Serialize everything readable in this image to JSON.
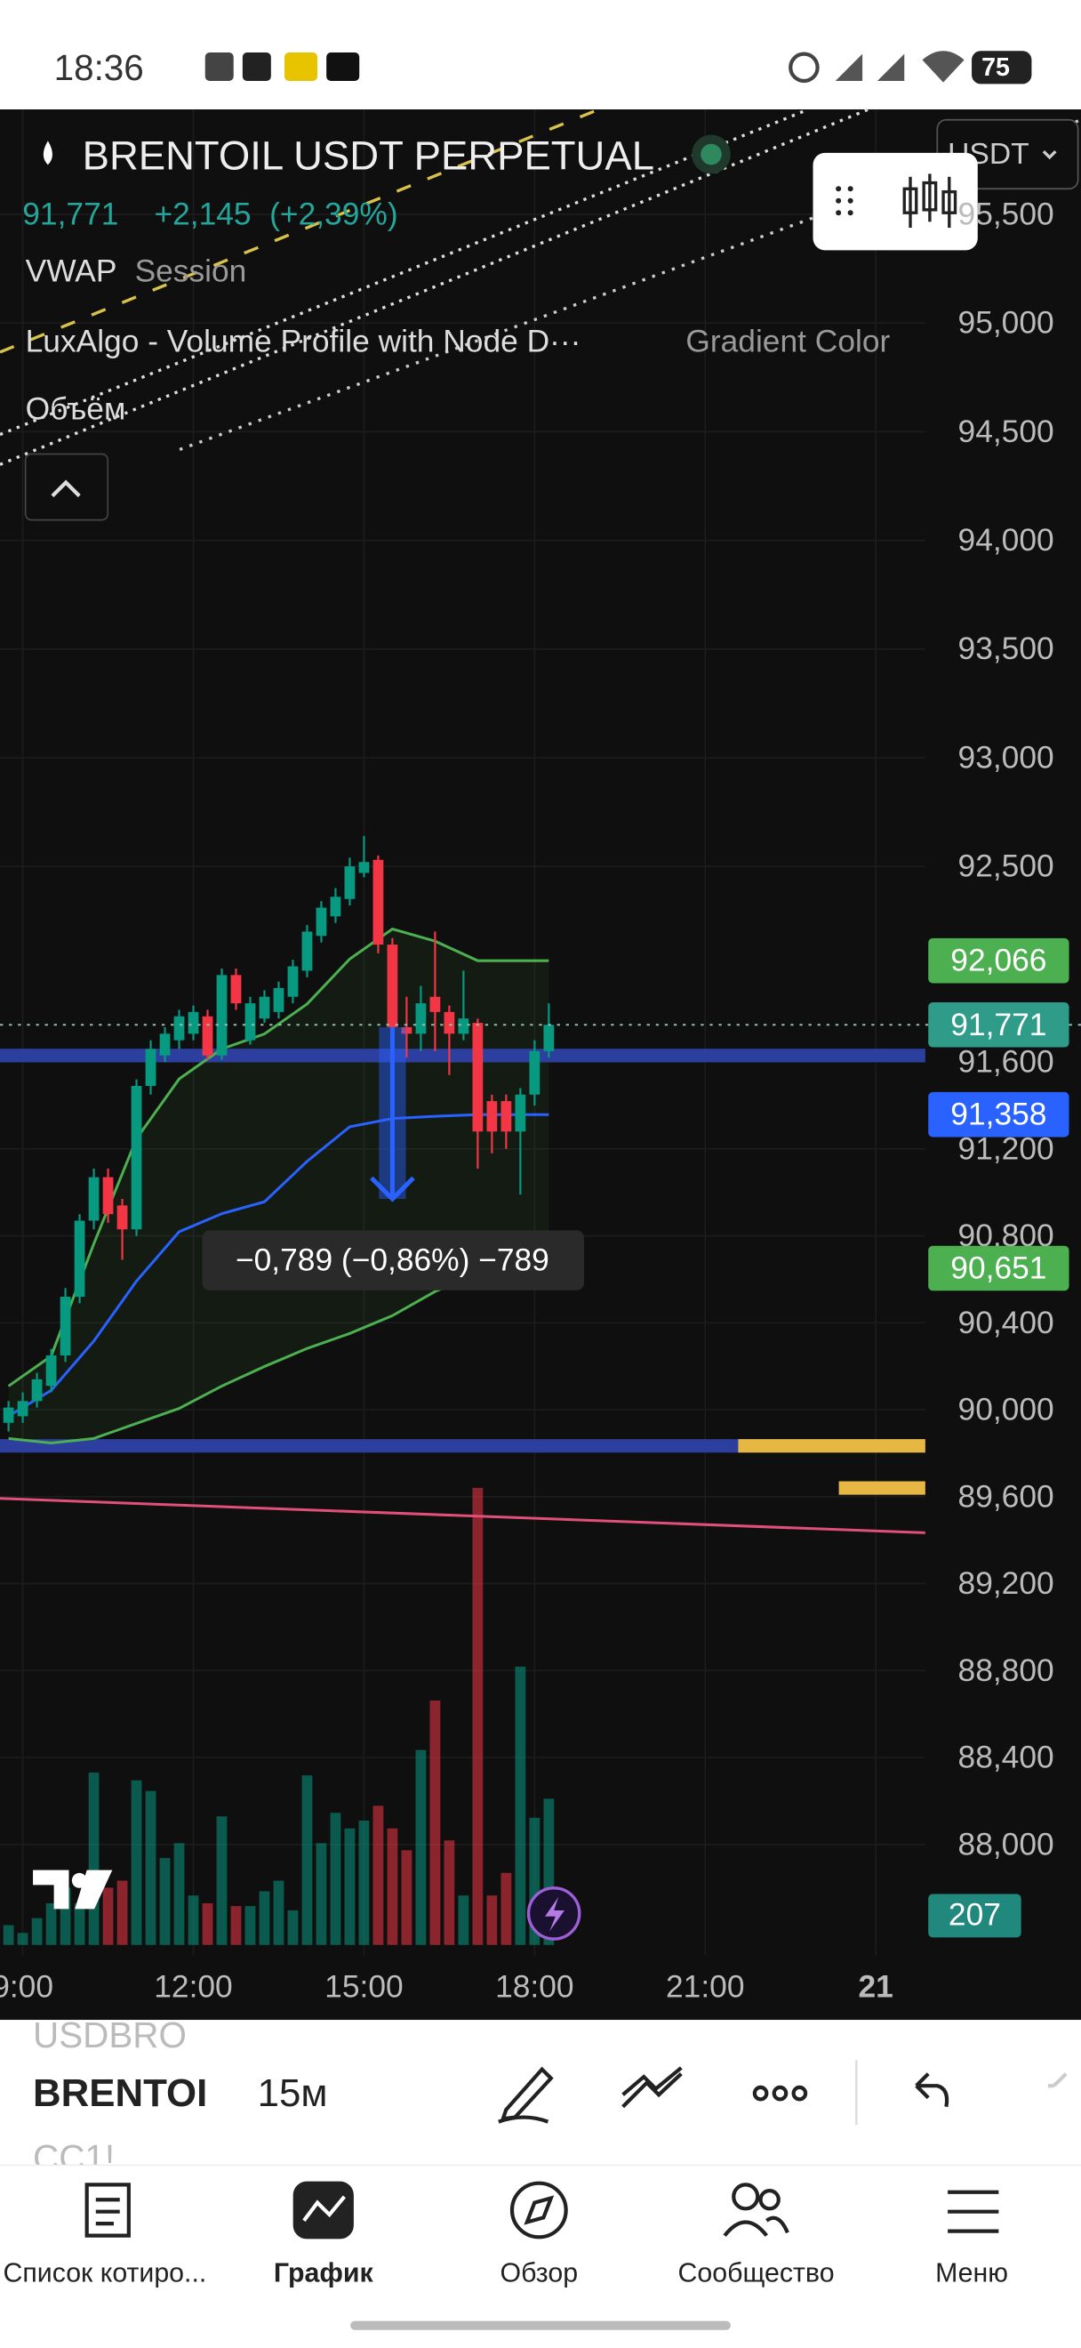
{
  "status_bar": {
    "time": "18:36",
    "battery": "75"
  },
  "currency": "USDT",
  "legend": {
    "last": "91,771",
    "change": "+2,145",
    "change_pct": "(+2,39%)",
    "indicators": [
      {
        "name": "VWAP",
        "setting": "Session"
      },
      {
        "name": "LuxAlgo - Volume Profile with Node D···",
        "setting": "Gradient Color"
      },
      {
        "name": "Объём"
      }
    ]
  },
  "chart_data": {
    "type": "candlestick",
    "title": "BRENTOIL USDT PERPETUAL",
    "up_color": "#089981",
    "down_color": "#f23645",
    "x": [
      8.75,
      9,
      9.25,
      9.5,
      9.75,
      10,
      10.25,
      10.5,
      10.75,
      11,
      11.25,
      11.5,
      11.75,
      12,
      12.25,
      12.5,
      12.75,
      13,
      13.25,
      13.5,
      13.75,
      14,
      14.25,
      14.5,
      14.75,
      15,
      15.25,
      15.5,
      15.75,
      16,
      16.25,
      16.5,
      16.75,
      17,
      17.25,
      17.5,
      17.75,
      18,
      18.25
    ],
    "open": [
      89940,
      89970,
      90040,
      90110,
      90250,
      90520,
      90870,
      91070,
      90940,
      90830,
      91490,
      91630,
      91700,
      91730,
      91810,
      91630,
      92000,
      91700,
      91800,
      91830,
      91900,
      92020,
      92180,
      92270,
      92350,
      92470,
      92530,
      92140,
      91760,
      91730,
      91900,
      91830,
      91730,
      91780,
      91420,
      91420,
      91280,
      91450,
      91650
    ],
    "high": [
      90040,
      90080,
      90170,
      90280,
      90560,
      90900,
      91110,
      91110,
      90970,
      91520,
      91700,
      91760,
      91840,
      91860,
      91840,
      92030,
      92030,
      91900,
      91930,
      91970,
      92070,
      92230,
      92340,
      92400,
      92540,
      92640,
      92550,
      92170,
      91900,
      91950,
      92200,
      91860,
      92020,
      91800,
      91450,
      91450,
      91480,
      91700,
      91870
    ],
    "low": [
      89900,
      89940,
      90010,
      90080,
      90220,
      90490,
      90830,
      90860,
      90690,
      90800,
      91450,
      91600,
      91660,
      91700,
      91610,
      91610,
      91840,
      91680,
      91780,
      91800,
      91870,
      91990,
      92150,
      92240,
      92320,
      92450,
      92100,
      91600,
      91620,
      91650,
      91650,
      91540,
      91700,
      91110,
      91180,
      91200,
      90990,
      91400,
      91620
    ],
    "close": [
      90010,
      90040,
      90140,
      90250,
      90520,
      90870,
      91070,
      90900,
      90830,
      91490,
      91660,
      91730,
      91810,
      91830,
      91630,
      92000,
      91870,
      91870,
      91900,
      91940,
      92040,
      92200,
      92310,
      92360,
      92500,
      92520,
      92140,
      91760,
      91730,
      91870,
      91830,
      91730,
      91800,
      91280,
      91280,
      91280,
      91450,
      91650,
      91771
    ],
    "volume": [
      28,
      17,
      38,
      59,
      81,
      59,
      244,
      81,
      91,
      233,
      218,
      123,
      144,
      70,
      59,
      182,
      55,
      55,
      76,
      91,
      49,
      240,
      144,
      187,
      165,
      176,
      197,
      165,
      134,
      276,
      346,
      148,
      70,
      647,
      70,
      102,
      394,
      180,
      207
    ],
    "volume_lim": [
      0,
      700
    ],
    "xlim": [
      8.6,
      24.87
    ],
    "xticks": [
      {
        "value": 9,
        "label": "9:00"
      },
      {
        "value": 12,
        "label": "12:00"
      },
      {
        "value": 15,
        "label": "15:00"
      },
      {
        "value": 18,
        "label": "18:00"
      },
      {
        "value": 21,
        "label": "21:00"
      },
      {
        "value": 24,
        "label": "21"
      }
    ],
    "ylim": [
      87524,
      95969
    ],
    "yticks": [
      {
        "value": 95500,
        "label": "95,500"
      },
      {
        "value": 95000,
        "label": "95,000"
      },
      {
        "value": 94500,
        "label": "94,500"
      },
      {
        "value": 94000,
        "label": "94,000"
      },
      {
        "value": 93500,
        "label": "93,500"
      },
      {
        "value": 93000,
        "label": "93,000"
      },
      {
        "value": 92500,
        "label": "92,500"
      },
      {
        "value": 91600,
        "label": "91,600"
      },
      {
        "value": 91200,
        "label": "91,200"
      },
      {
        "value": 90800,
        "label": "90,800"
      },
      {
        "value": 90400,
        "label": "90,400"
      },
      {
        "value": 90000,
        "label": "90,000"
      },
      {
        "value": 89600,
        "label": "89,600"
      },
      {
        "value": 89200,
        "label": "89,200"
      },
      {
        "value": 88800,
        "label": "88,800"
      },
      {
        "value": 88400,
        "label": "88,400"
      },
      {
        "value": 88000,
        "label": "88,000"
      }
    ],
    "grid": true,
    "overlays": [
      {
        "color": "#2962ff",
        "x": [
          8.75,
          9.5,
          10.25,
          11,
          11.75,
          12.5,
          13.25,
          14,
          14.75,
          15.5,
          16.25,
          17,
          17.75,
          18.25
        ],
        "values": [
          89971,
          90089,
          90316,
          90592,
          90819,
          90902,
          90957,
          91143,
          91302,
          91340,
          91350,
          91358,
          91358,
          91358
        ]
      },
      {
        "color": "#4caf50",
        "x": [
          8.75,
          9.5,
          10.25,
          11,
          11.75,
          12.5,
          13.25,
          14,
          14.75,
          15.5,
          16.25,
          17,
          17.75,
          18.25
        ],
        "values": [
          90109,
          90247,
          90764,
          91247,
          91522,
          91660,
          91729,
          91867,
          92074,
          92212,
          92156,
          92066,
          92066,
          92066
        ]
      },
      {
        "color": "#4caf50",
        "x": [
          8.75,
          9.5,
          10.25,
          11,
          11.75,
          12.5,
          13.25,
          14,
          14.75,
          15.5,
          16.25,
          17,
          17.75,
          18.25
        ],
        "values": [
          89868,
          89847,
          89868,
          89937,
          90006,
          90109,
          90199,
          90282,
          90351,
          90433,
          90544,
          90626,
          90651,
          90651
        ]
      },
      {
        "color": "#e0507a",
        "x": [
          8.6,
          24.87
        ],
        "values": [
          89592,
          89434
        ]
      }
    ],
    "levels": [
      {
        "value": 91630,
        "color": "#2c3e9e"
      },
      {
        "value": 89834,
        "color": "#2c3e9e"
      }
    ],
    "profile_bars": [
      {
        "value": 89834,
        "x": [
          21.58,
          24.87
        ],
        "color": "#e6b843"
      },
      {
        "value": 89640,
        "x": [
          23.35,
          24.87
        ],
        "color": "#e6b843"
      }
    ],
    "price_labels": [
      {
        "value": 92066,
        "label": "92,066",
        "color": "#4caf50"
      },
      {
        "value": 91771,
        "label": "91,771",
        "color": "#2e9c89"
      },
      {
        "value": 91358,
        "label": "91,358",
        "color": "#2962ff"
      },
      {
        "value": 90651,
        "label": "90,651",
        "color": "#4caf50"
      }
    ],
    "measure": {
      "x": 15.5,
      "from": 91760,
      "to": 90970,
      "label": "−0,789 (−0,86%) −789"
    }
  },
  "toolbar": {
    "symbols": [
      "USDBRO",
      "BRENTOI",
      "CC1!"
    ],
    "interval": "15м"
  },
  "nav": [
    "Список котиро...",
    "График",
    "Обзор",
    "Сообщество",
    "Меню"
  ]
}
